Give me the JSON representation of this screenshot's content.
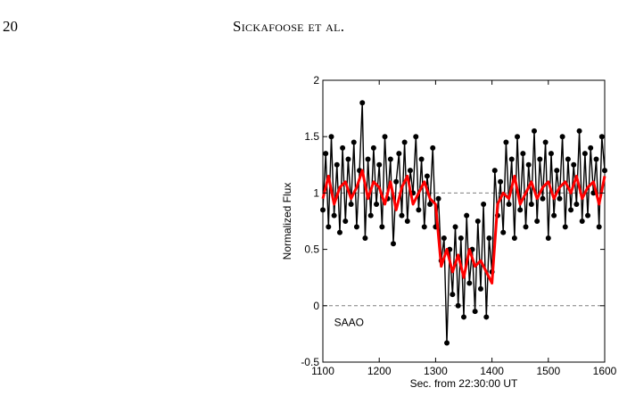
{
  "page": {
    "number": "20",
    "running_head": "Sickafoose et al."
  },
  "chart_data": {
    "type": "line",
    "xlabel": "Sec. from 22:30:00 UT",
    "ylabel": "Normalized Flux",
    "xlim": [
      1100,
      1600
    ],
    "ylim": [
      -0.5,
      2
    ],
    "xticks": [
      "1100",
      "1200",
      "1300",
      "1400",
      "1500",
      "1600"
    ],
    "yticks": [
      "-0.5",
      "0",
      "0.5",
      "1",
      "1.5",
      "2"
    ],
    "annotation": "SAAO",
    "reference_lines": [
      0,
      1
    ],
    "colors": {
      "raw": "#000000",
      "smoothed": "#ff0000",
      "reference": "#7f7f7f"
    },
    "series": [
      {
        "style": "black points joined by lines",
        "x": [
          1100,
          1105,
          1110,
          1115,
          1120,
          1125,
          1130,
          1135,
          1140,
          1145,
          1150,
          1155,
          1160,
          1165,
          1170,
          1175,
          1180,
          1185,
          1190,
          1195,
          1200,
          1205,
          1210,
          1215,
          1220,
          1225,
          1230,
          1235,
          1240,
          1245,
          1250,
          1255,
          1260,
          1265,
          1270,
          1275,
          1280,
          1285,
          1290,
          1295,
          1300,
          1305,
          1310,
          1315,
          1320,
          1325,
          1330,
          1335,
          1340,
          1345,
          1350,
          1355,
          1360,
          1365,
          1370,
          1375,
          1380,
          1385,
          1390,
          1395,
          1400,
          1405,
          1410,
          1415,
          1420,
          1425,
          1430,
          1435,
          1440,
          1445,
          1450,
          1455,
          1460,
          1465,
          1470,
          1475,
          1480,
          1485,
          1490,
          1495,
          1500,
          1505,
          1510,
          1515,
          1520,
          1525,
          1530,
          1535,
          1540,
          1545,
          1550,
          1555,
          1560,
          1565,
          1570,
          1575,
          1580,
          1585,
          1590,
          1595,
          1600
        ],
        "y": [
          0.85,
          1.35,
          0.7,
          1.5,
          0.8,
          1.25,
          0.65,
          1.4,
          0.75,
          1.3,
          0.9,
          1.45,
          0.7,
          1.2,
          1.8,
          0.6,
          1.3,
          0.8,
          1.4,
          0.9,
          1.25,
          0.7,
          1.5,
          0.95,
          1.3,
          0.55,
          1.1,
          1.35,
          0.8,
          1.45,
          0.75,
          1.2,
          1.0,
          1.5,
          0.85,
          1.3,
          0.7,
          1.15,
          0.9,
          1.4,
          0.7,
          0.95,
          0.4,
          0.6,
          -0.33,
          0.5,
          0.1,
          0.7,
          0.0,
          0.6,
          -0.1,
          0.8,
          0.2,
          0.5,
          -0.05,
          0.75,
          0.15,
          0.9,
          -0.1,
          0.6,
          0.3,
          1.2,
          0.8,
          1.1,
          0.65,
          1.45,
          0.9,
          1.3,
          0.6,
          1.5,
          0.85,
          1.35,
          0.7,
          1.25,
          0.9,
          1.55,
          0.75,
          1.3,
          0.95,
          1.45,
          0.6,
          1.35,
          0.8,
          1.2,
          0.95,
          1.5,
          0.7,
          1.3,
          0.85,
          1.25,
          0.9,
          1.55,
          0.75,
          1.35,
          0.8,
          1.4,
          1.0,
          1.3,
          0.7,
          1.5,
          1.2
        ]
      },
      {
        "style": "red smoothed line",
        "x": [
          1100,
          1110,
          1120,
          1130,
          1140,
          1150,
          1160,
          1170,
          1180,
          1190,
          1200,
          1210,
          1220,
          1230,
          1240,
          1250,
          1260,
          1270,
          1280,
          1290,
          1300,
          1310,
          1320,
          1330,
          1340,
          1350,
          1360,
          1370,
          1380,
          1390,
          1400,
          1410,
          1420,
          1430,
          1440,
          1450,
          1460,
          1470,
          1480,
          1490,
          1500,
          1510,
          1520,
          1530,
          1540,
          1550,
          1560,
          1570,
          1580,
          1590,
          1600
        ],
        "y": [
          0.95,
          1.15,
          0.9,
          1.05,
          1.1,
          0.95,
          1.05,
          1.2,
          0.95,
          1.1,
          1.05,
          0.9,
          1.1,
          0.85,
          1.05,
          1.15,
          0.9,
          1.0,
          1.1,
          0.95,
          0.9,
          0.35,
          0.5,
          0.3,
          0.45,
          0.25,
          0.5,
          0.35,
          0.4,
          0.3,
          0.2,
          0.9,
          1.0,
          0.95,
          1.15,
          0.9,
          1.0,
          1.1,
          0.95,
          1.05,
          1.1,
          0.95,
          1.05,
          1.1,
          1.0,
          1.15,
          0.95,
          1.05,
          1.1,
          0.9,
          1.15
        ]
      }
    ]
  }
}
